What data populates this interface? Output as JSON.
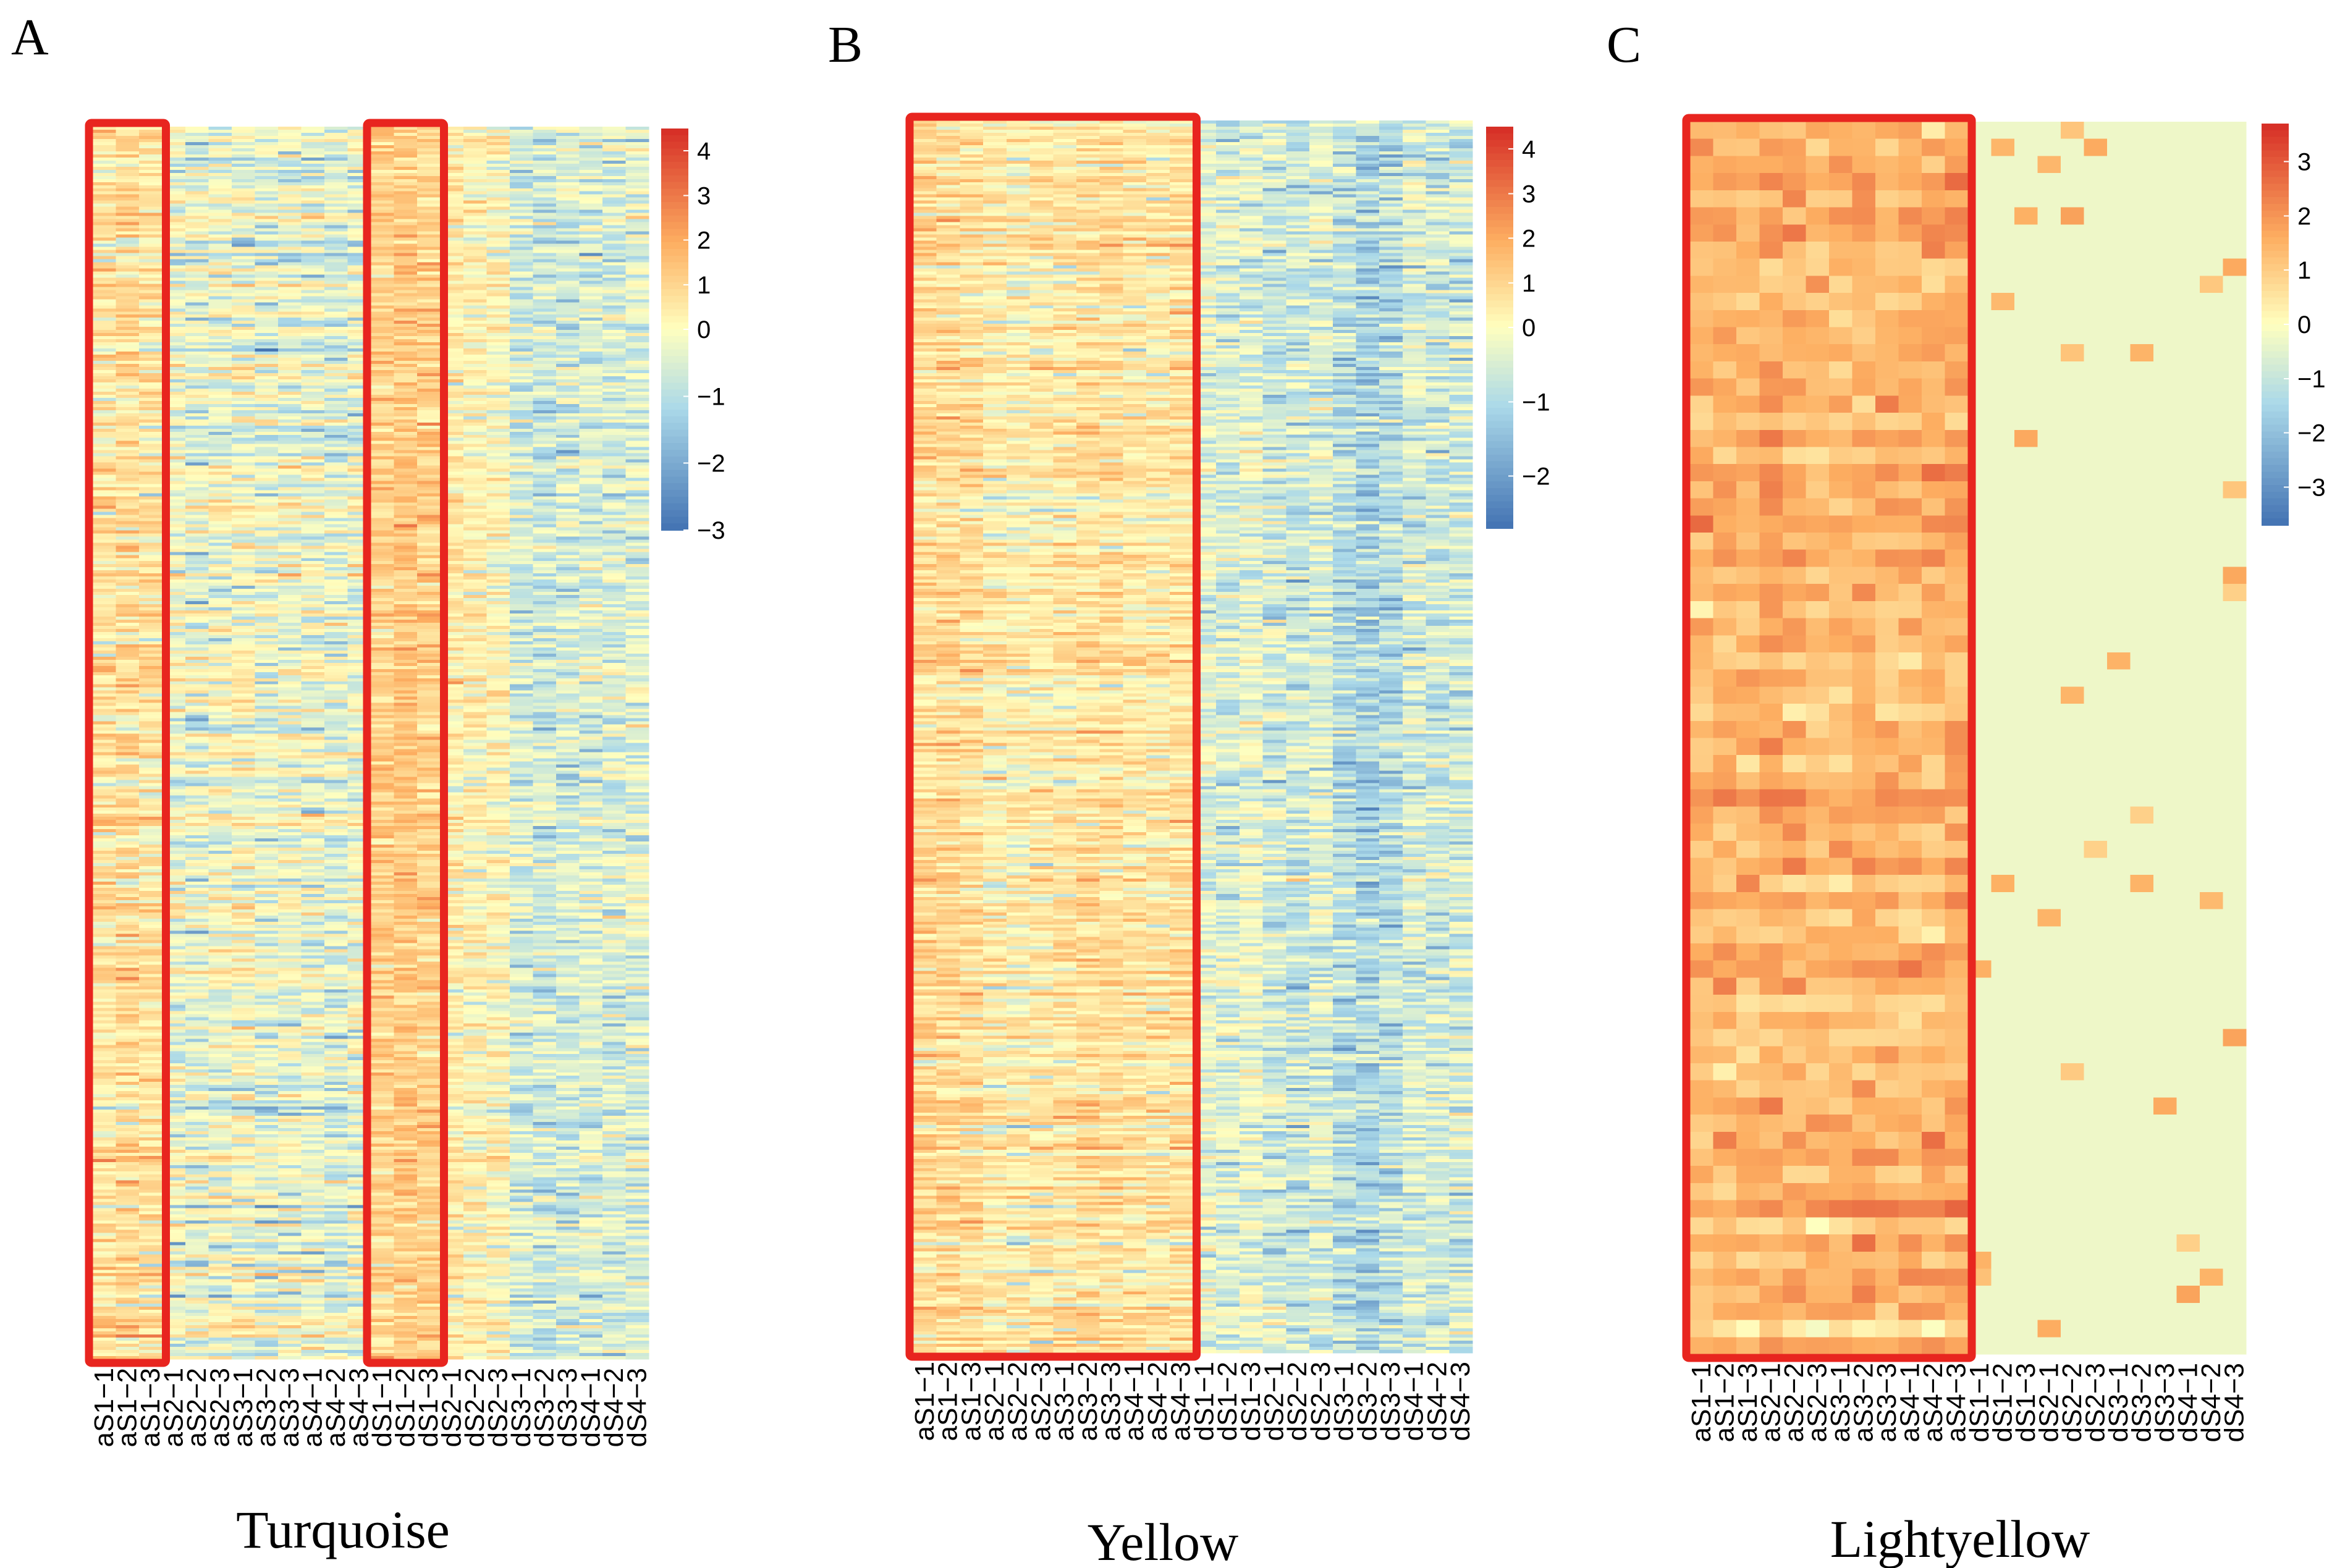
{
  "figure": {
    "colors": {
      "low": "#4575b4",
      "mid_low": "#abd9e9",
      "neutral": "#ffffbf",
      "mid_high": "#fdae61",
      "high": "#d73027",
      "highlight_box": "#e8251f"
    }
  },
  "chart_data": [
    {
      "type": "heatmap",
      "panel": "A",
      "title": "Turquoise",
      "columns": [
        "aS1−1",
        "aS1−2",
        "aS1−3",
        "aS2−1",
        "aS2−2",
        "aS2−3",
        "aS3−1",
        "aS3−2",
        "aS3−3",
        "aS4−1",
        "aS4−2",
        "aS4−3",
        "dS1−1",
        "dS1−2",
        "dS1−3",
        "dS2−1",
        "dS2−2",
        "dS2−3",
        "dS3−1",
        "dS3−2",
        "dS3−3",
        "dS4−1",
        "dS4−2",
        "dS4−3"
      ],
      "rows": 400,
      "column_means": [
        0.6,
        0.8,
        0.6,
        -0.2,
        -0.3,
        -0.2,
        -0.1,
        -0.3,
        -0.2,
        -0.3,
        -0.5,
        -0.2,
        1.1,
        1.3,
        1.1,
        0.4,
        0.2,
        0.2,
        -0.6,
        -0.8,
        -0.6,
        -0.5,
        -0.6,
        -0.5
      ],
      "noise": 0.9,
      "colorbar": {
        "min": -3,
        "max": 4.5,
        "ticks": [
          "4",
          "3",
          "2",
          "1",
          "0",
          "−1",
          "−2",
          "−3"
        ]
      },
      "highlight_groups": [
        [
          0,
          2
        ],
        [
          12,
          14
        ]
      ]
    },
    {
      "type": "heatmap",
      "panel": "B",
      "title": "Yellow",
      "columns": [
        "aS1−1",
        "aS1−2",
        "aS1−3",
        "aS2−1",
        "aS2−2",
        "aS2−3",
        "aS3−1",
        "aS3−2",
        "aS3−3",
        "aS4−1",
        "aS4−2",
        "aS4−3",
        "dS1−1",
        "dS1−2",
        "dS1−3",
        "dS2−1",
        "dS2−2",
        "dS2−3",
        "dS3−1",
        "dS3−2",
        "dS3−3",
        "dS4−1",
        "dS4−2",
        "dS4−3"
      ],
      "rows": 400,
      "column_means": [
        0.9,
        0.9,
        0.8,
        0.4,
        0.3,
        0.5,
        0.6,
        0.7,
        0.8,
        0.6,
        0.5,
        0.7,
        -0.3,
        -0.5,
        -0.3,
        -0.6,
        -0.7,
        -0.5,
        -0.9,
        -1.1,
        -1.0,
        -0.5,
        -0.6,
        -0.6
      ],
      "noise": 0.8,
      "colorbar": {
        "min": -2.7,
        "max": 4.5,
        "ticks": [
          "4",
          "3",
          "2",
          "1",
          "0",
          "−1",
          "−2"
        ]
      },
      "highlight_groups": [
        [
          0,
          11
        ]
      ]
    },
    {
      "type": "heatmap",
      "panel": "C",
      "title": "Lightyellow",
      "columns": [
        "aS1−1",
        "aS1−2",
        "aS1−3",
        "aS2−1",
        "aS2−2",
        "aS2−3",
        "aS3−1",
        "aS3−2",
        "aS3−3",
        "aS4−1",
        "aS4−2",
        "aS4−3",
        "dS1−1",
        "dS1−2",
        "dS1−3",
        "dS2−1",
        "dS2−2",
        "dS2−3",
        "dS3−1",
        "dS3−2",
        "dS3−3",
        "dS4−1",
        "dS4−2",
        "dS4−3"
      ],
      "rows": 72,
      "column_means": [
        1.3,
        1.5,
        1.3,
        1.6,
        1.5,
        1.3,
        1.4,
        1.6,
        1.5,
        1.4,
        1.5,
        1.6,
        -0.3,
        -0.3,
        -0.3,
        -0.3,
        -0.3,
        -0.3,
        -0.3,
        -0.3,
        -0.3,
        -0.3,
        -0.3,
        -0.3
      ],
      "noise": 0.6,
      "colorbar": {
        "min": -3.7,
        "max": 3.7,
        "ticks": [
          "3",
          "2",
          "1",
          "0",
          "−1",
          "−2",
          "−3"
        ]
      },
      "highlight_groups": [
        [
          0,
          11
        ]
      ]
    }
  ]
}
